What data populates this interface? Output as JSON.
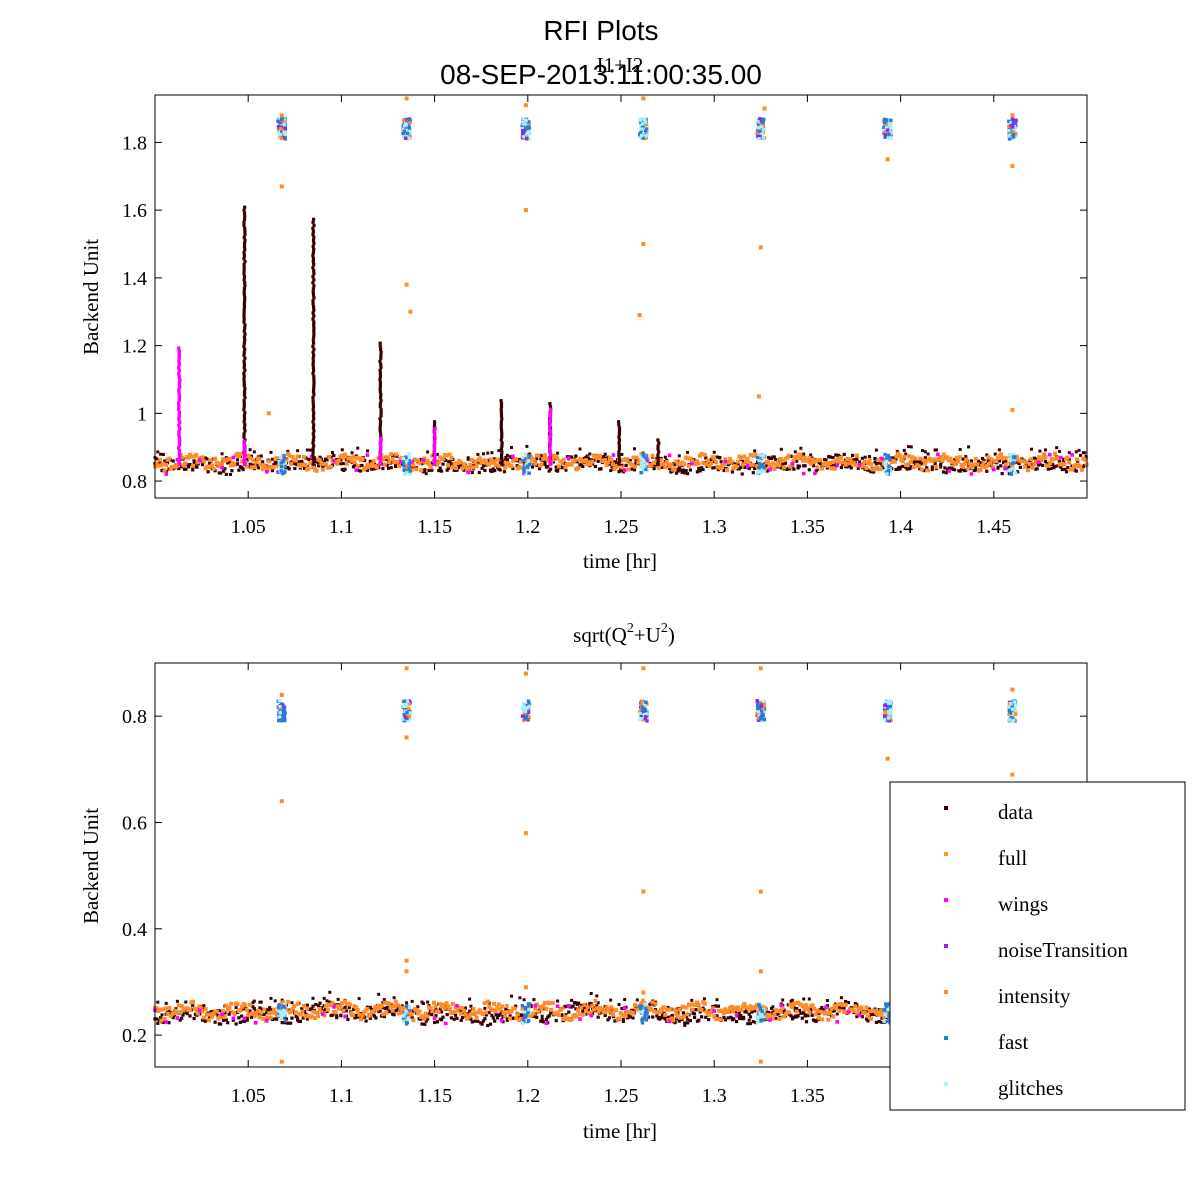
{
  "figure": {
    "title": "RFI Plots",
    "subtitle": "08-SEP-2013:11:00:35.00"
  },
  "legend": {
    "placement": "lower-right",
    "items": [
      {
        "name": "data",
        "color": "#3a0000"
      },
      {
        "name": "full",
        "color": "#f0a020"
      },
      {
        "name": "wings",
        "color": "#ff00ff"
      },
      {
        "name": "noiseTransition",
        "color": "#8a2be2"
      },
      {
        "name": "intensity",
        "color": "#ff8c28"
      },
      {
        "name": "fast",
        "color": "#2a7ad5"
      },
      {
        "name": "glitches",
        "color": "#a8f0f8"
      }
    ]
  },
  "chart_data": [
    {
      "type": "scatter",
      "title": "I1+I2",
      "xlabel": "time [hr]",
      "ylabel": "Backend Unit",
      "xlim": [
        1.0,
        1.5
      ],
      "ylim": [
        0.75,
        1.94
      ],
      "xticks": [
        1.05,
        1.1,
        1.15,
        1.2,
        1.25,
        1.3,
        1.35,
        1.4,
        1.45
      ],
      "xtick_labels": [
        "1.05",
        "1.1",
        "1.15",
        "1.2",
        "1.25",
        "1.3",
        "1.35",
        "1.4",
        "1.45"
      ],
      "yticks": [
        0.8,
        1.0,
        1.2,
        1.4,
        1.6,
        1.8
      ],
      "ytick_labels": [
        "0.8",
        "1",
        "1.2",
        "1.4",
        "1.6",
        "1.8"
      ],
      "grid": false,
      "baseline": 0.85,
      "calibration_times": [
        1.068,
        1.135,
        1.199,
        1.262,
        1.325,
        1.393,
        1.46
      ],
      "calibration_level": 1.84,
      "spikes_data": [
        [
          1.048,
          1.61
        ],
        [
          1.085,
          1.58
        ],
        [
          1.121,
          1.21
        ],
        [
          1.15,
          0.98
        ],
        [
          1.186,
          1.04
        ],
        [
          1.212,
          1.03
        ],
        [
          1.249,
          0.98
        ],
        [
          1.27,
          0.93
        ]
      ],
      "spikes_wings": [
        [
          1.013,
          1.2
        ],
        [
          1.048,
          0.92
        ],
        [
          1.121,
          0.93
        ],
        [
          1.15,
          0.96
        ],
        [
          1.212,
          1.02
        ]
      ],
      "outliers_intensity": [
        [
          1.068,
          1.67
        ],
        [
          1.068,
          1.88
        ],
        [
          1.135,
          1.38
        ],
        [
          1.137,
          1.3
        ],
        [
          1.135,
          1.93
        ],
        [
          1.199,
          1.6
        ],
        [
          1.199,
          1.91
        ],
        [
          1.262,
          1.5
        ],
        [
          1.26,
          1.29
        ],
        [
          1.262,
          1.93
        ],
        [
          1.325,
          1.49
        ],
        [
          1.324,
          1.05
        ],
        [
          1.327,
          1.9
        ],
        [
          1.393,
          1.75
        ],
        [
          1.46,
          1.01
        ],
        [
          1.46,
          1.88
        ],
        [
          1.061,
          1.0
        ],
        [
          1.46,
          1.73
        ]
      ]
    },
    {
      "type": "scatter",
      "title_parts": [
        "sqrt(Q",
        "2",
        "+U",
        "2",
        ")"
      ],
      "xlabel": "time [hr]",
      "ylabel": "Backend Unit",
      "xlim": [
        1.0,
        1.5
      ],
      "ylim": [
        0.14,
        0.9
      ],
      "xticks": [
        1.05,
        1.1,
        1.15,
        1.2,
        1.25,
        1.3,
        1.35,
        1.4,
        1.45
      ],
      "xtick_labels": [
        "1.05",
        "1.1",
        "1.15",
        "1.2",
        "1.25",
        "1.3",
        "1.35",
        "1.4",
        "1.45"
      ],
      "yticks": [
        0.2,
        0.4,
        0.6,
        0.8
      ],
      "ytick_labels": [
        "0.2",
        "0.4",
        "0.6",
        "0.8"
      ],
      "grid": false,
      "baseline": 0.24,
      "calibration_times": [
        1.068,
        1.135,
        1.199,
        1.262,
        1.325,
        1.393,
        1.46
      ],
      "calibration_level": 0.81,
      "outliers_intensity": [
        [
          1.068,
          0.64
        ],
        [
          1.068,
          0.84
        ],
        [
          1.135,
          0.34
        ],
        [
          1.135,
          0.32
        ],
        [
          1.135,
          0.89
        ],
        [
          1.135,
          0.76
        ],
        [
          1.199,
          0.58
        ],
        [
          1.199,
          0.88
        ],
        [
          1.199,
          0.29
        ],
        [
          1.262,
          0.47
        ],
        [
          1.262,
          0.28
        ],
        [
          1.262,
          0.89
        ],
        [
          1.325,
          0.47
        ],
        [
          1.325,
          0.32
        ],
        [
          1.325,
          0.89
        ],
        [
          1.325,
          0.15
        ],
        [
          1.393,
          0.72
        ],
        [
          1.46,
          0.69
        ],
        [
          1.46,
          0.85
        ],
        [
          1.068,
          0.15
        ]
      ]
    }
  ]
}
